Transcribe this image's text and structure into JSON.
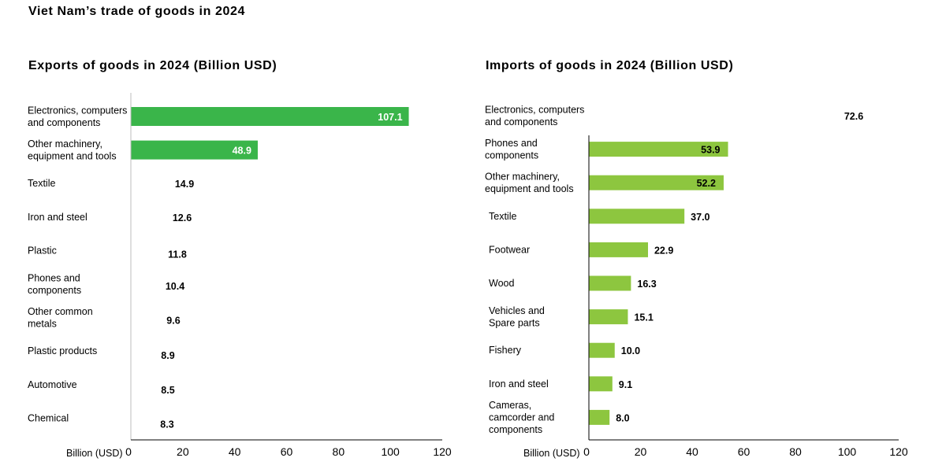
{
  "title": "Viet Nam’s trade of goods in 2024",
  "chart_data": [
    {
      "type": "bar",
      "orientation": "horizontal",
      "title": "Exports of goods in 2024 (Billion USD)",
      "xlabel": "Billion (USD)",
      "xlim": [
        0,
        120
      ],
      "xticks": [
        0,
        20,
        40,
        60,
        80,
        100,
        120
      ],
      "grid": false,
      "categories": [
        [
          "Electronics, computers",
          "and components"
        ],
        [
          "Other machinery,",
          "equipment and tools"
        ],
        [
          "Textile"
        ],
        [
          "Iron and steel"
        ],
        [
          "Plastic"
        ],
        [
          "Phones and",
          "components"
        ],
        [
          "Other common",
          "metals"
        ],
        [
          "Plastic products"
        ],
        [
          "Automotive"
        ],
        [
          "Chemical"
        ]
      ],
      "values": [
        107.1,
        48.9,
        14.9,
        12.6,
        11.8,
        10.4,
        9.6,
        8.9,
        8.5,
        8.3
      ],
      "value_labels": [
        "107.1",
        "48.9",
        "14.9",
        "12.6",
        "11.8",
        "10.4",
        "9.6",
        "8.9",
        "8.5",
        "8.3"
      ],
      "bars_drawn": [
        true,
        true,
        false,
        false,
        false,
        false,
        false,
        false,
        false,
        false
      ],
      "bar_color": "#3ab54a",
      "label_inside_color": "#ffffff"
    },
    {
      "type": "bar",
      "orientation": "horizontal",
      "title": "Imports of goods in 2024 (Billion USD)",
      "xlabel": "Billion (USD)",
      "xlim": [
        0,
        120
      ],
      "xticks": [
        0,
        20,
        40,
        60,
        80,
        100,
        120
      ],
      "grid": false,
      "categories": [
        [
          "Electronics, computers",
          "and components"
        ],
        [
          "Phones and",
          "components"
        ],
        [
          "Other machinery,",
          "equipment and tools"
        ],
        [
          "Textile"
        ],
        [
          "Footwear"
        ],
        [
          "Wood"
        ],
        [
          "Vehicles and",
          "Spare parts"
        ],
        [
          "Fishery"
        ],
        [
          "Iron and steel"
        ],
        [
          "Cameras,",
          "camcorder and",
          "components"
        ]
      ],
      "values": [
        72.6,
        53.9,
        52.2,
        37.0,
        22.9,
        16.3,
        15.1,
        10.0,
        9.1,
        8.0
      ],
      "value_labels": [
        "72.6",
        "53.9",
        "52.2",
        "37.0",
        "22.9",
        "16.3",
        "15.1",
        "10.0",
        "9.1",
        "8.0"
      ],
      "bars_drawn": [
        false,
        true,
        true,
        true,
        true,
        true,
        true,
        true,
        true,
        true
      ],
      "bar_color": "#8dc63f",
      "label_inside_color": "#000000"
    }
  ]
}
